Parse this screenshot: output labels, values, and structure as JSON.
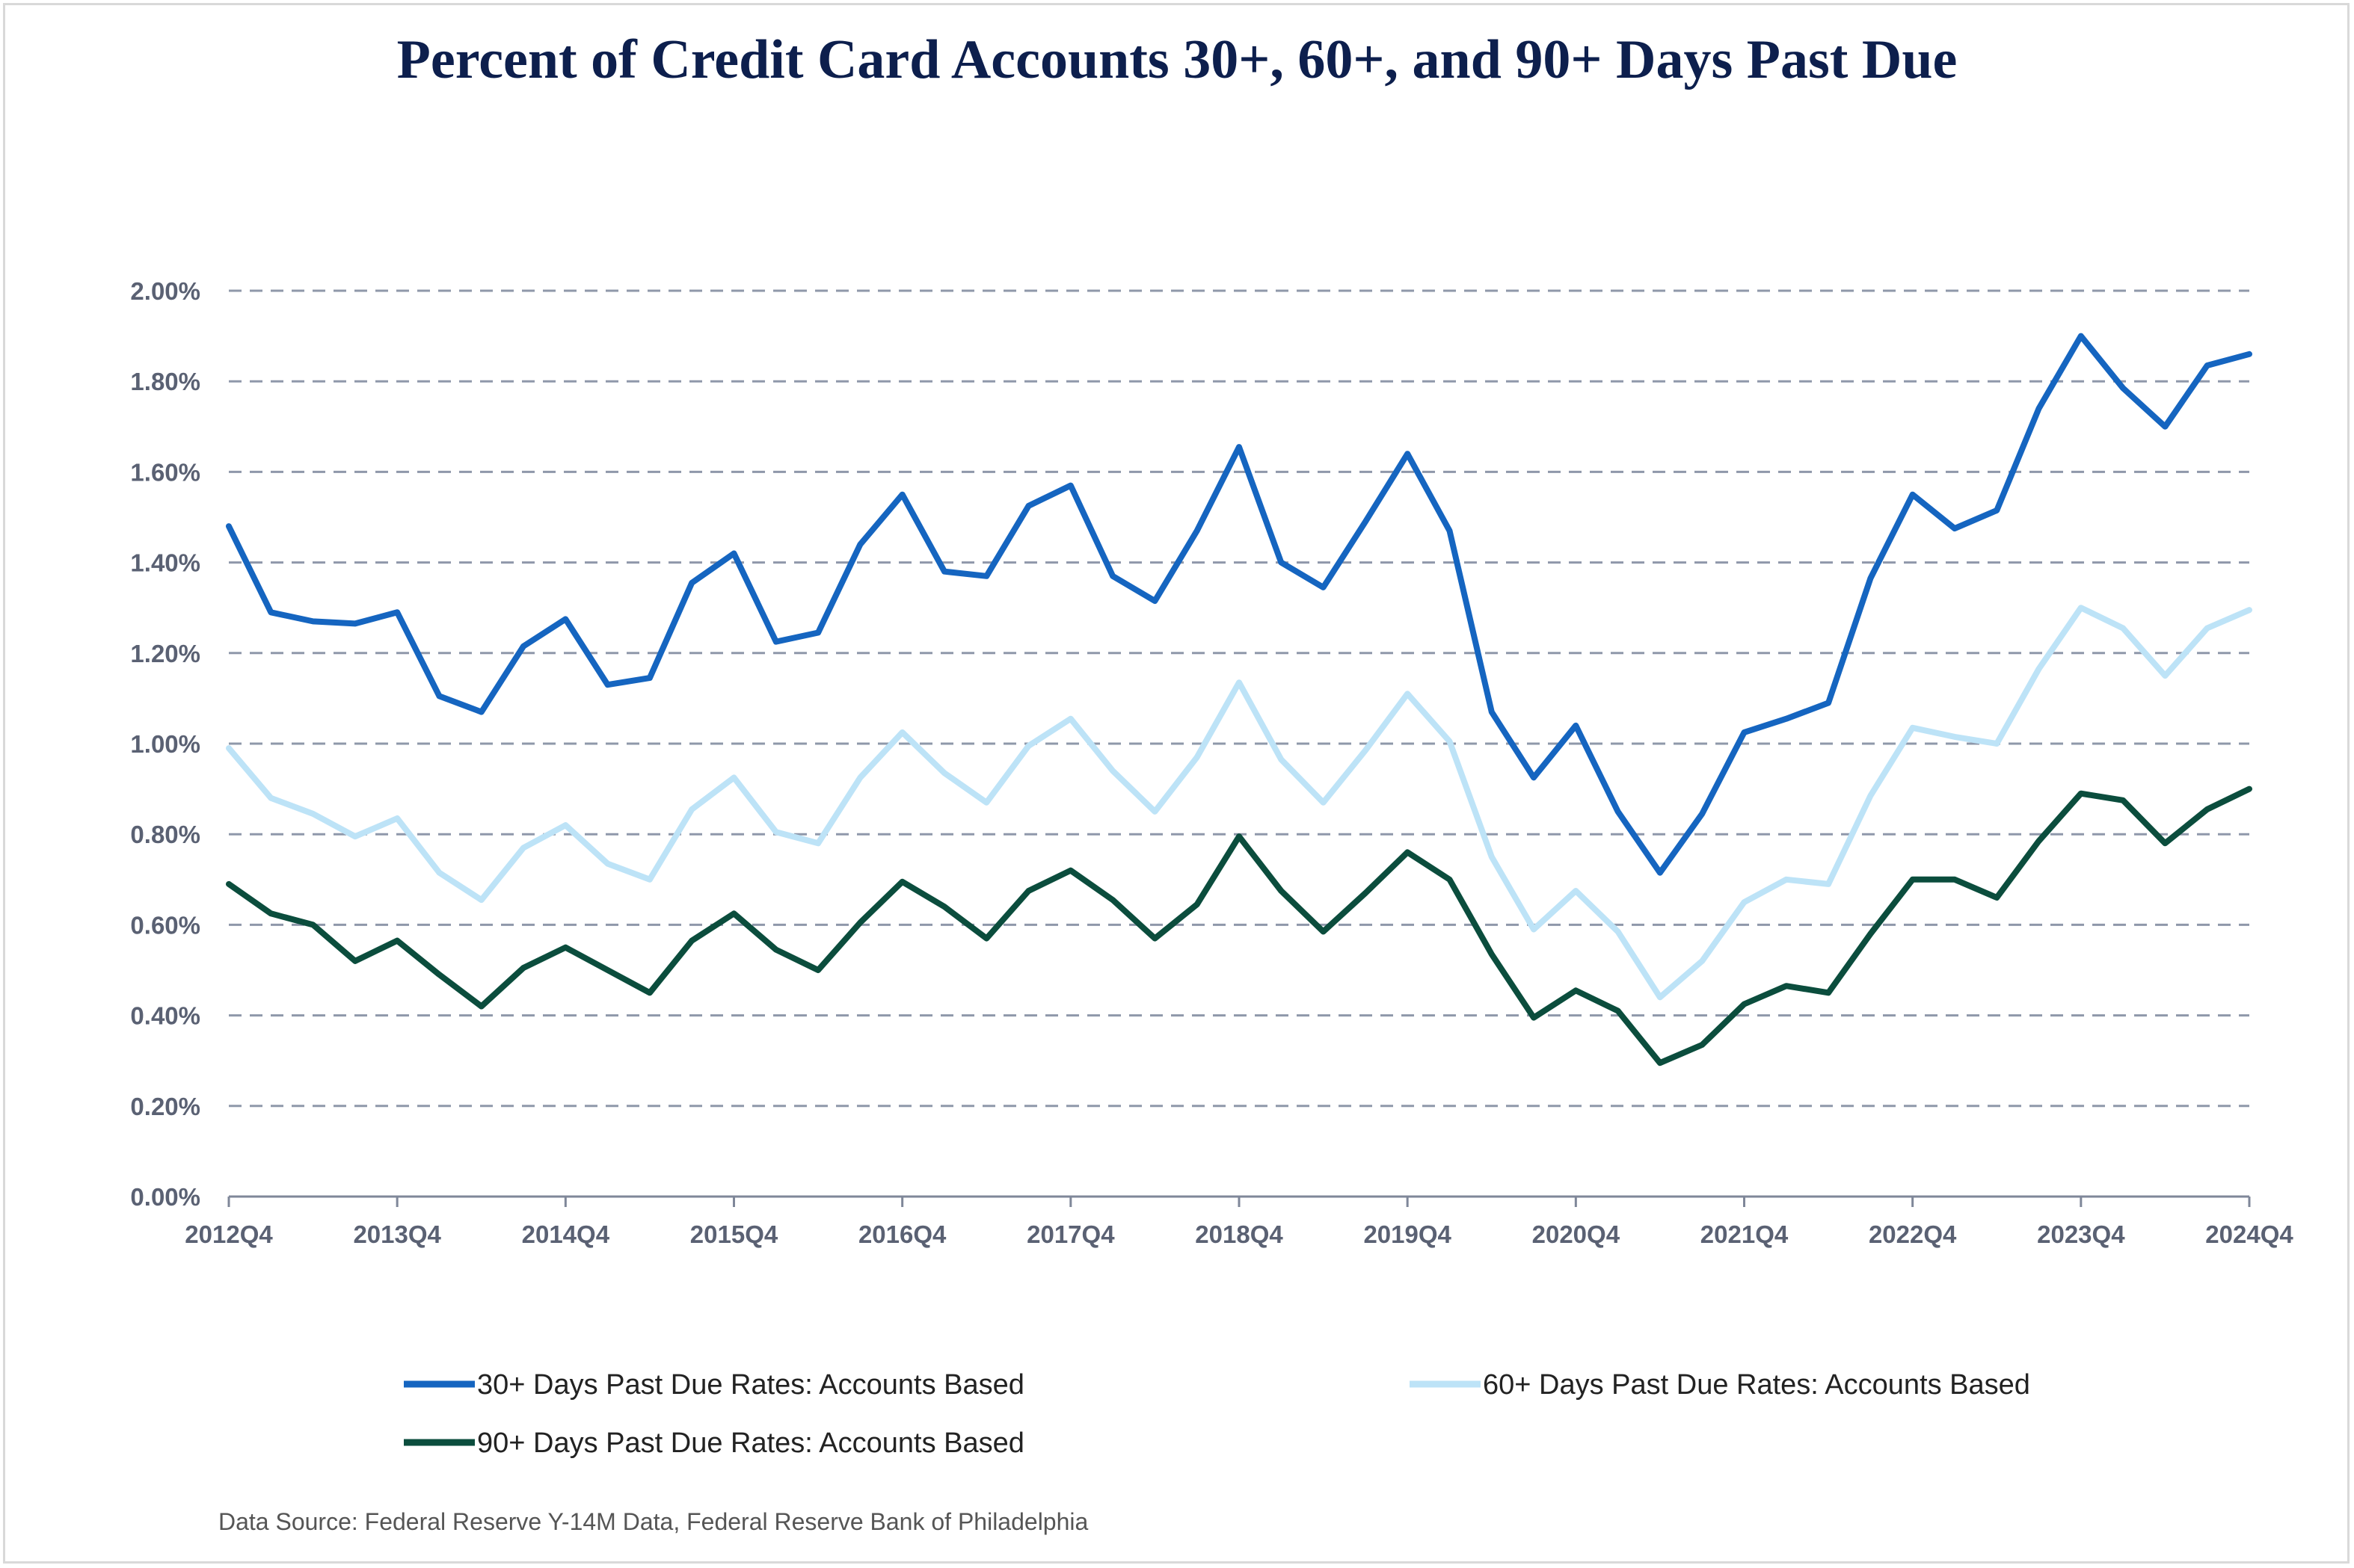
{
  "chart_data": {
    "type": "line",
    "title": "Percent of Credit Card Accounts 30+, 60+, and 90+ Days Past Due",
    "xlabel": "",
    "ylabel": "",
    "ylim": [
      0,
      2.0
    ],
    "yticks": [
      "0.00%",
      "0.20%",
      "0.40%",
      "0.60%",
      "0.80%",
      "1.00%",
      "1.20%",
      "1.40%",
      "1.60%",
      "1.80%",
      "2.00%"
    ],
    "xtick_labels": [
      "2012Q4",
      "2013Q4",
      "2014Q4",
      "2015Q4",
      "2016Q4",
      "2017Q4",
      "2018Q4",
      "2019Q4",
      "2020Q4",
      "2021Q4",
      "2022Q4",
      "2023Q4",
      "2024Q4"
    ],
    "x": [
      "2012Q4",
      "2013Q1",
      "2013Q2",
      "2013Q3",
      "2013Q4",
      "2014Q1",
      "2014Q2",
      "2014Q3",
      "2014Q4",
      "2015Q1",
      "2015Q2",
      "2015Q3",
      "2015Q4",
      "2016Q1",
      "2016Q2",
      "2016Q3",
      "2016Q4",
      "2017Q1",
      "2017Q2",
      "2017Q3",
      "2017Q4",
      "2018Q1",
      "2018Q2",
      "2018Q3",
      "2018Q4",
      "2019Q1",
      "2019Q2",
      "2019Q3",
      "2019Q4",
      "2020Q1",
      "2020Q2",
      "2020Q3",
      "2020Q4",
      "2021Q1",
      "2021Q2",
      "2021Q3",
      "2021Q4",
      "2022Q1",
      "2022Q2",
      "2022Q3",
      "2022Q4",
      "2023Q1",
      "2023Q2",
      "2023Q3",
      "2023Q4",
      "2024Q1",
      "2024Q2",
      "2024Q3",
      "2024Q4"
    ],
    "grid": "horizontal-dashed",
    "legend_position": "bottom",
    "series": [
      {
        "name": "30+ Days Past Due Rates: Accounts Based",
        "color": "#1565c0",
        "values": [
          1.48,
          1.29,
          1.27,
          1.265,
          1.29,
          1.105,
          1.07,
          1.215,
          1.275,
          1.13,
          1.145,
          1.355,
          1.42,
          1.225,
          1.245,
          1.44,
          1.55,
          1.38,
          1.37,
          1.525,
          1.57,
          1.37,
          1.315,
          1.47,
          1.655,
          1.4,
          1.345,
          1.49,
          1.64,
          1.47,
          1.07,
          0.925,
          1.04,
          0.85,
          0.715,
          0.845,
          1.025,
          1.055,
          1.09,
          1.365,
          1.55,
          1.475,
          1.515,
          1.74,
          1.9,
          1.785,
          1.7,
          1.835,
          1.86
        ]
      },
      {
        "name": "60+ Days Past Due Rates: Accounts Based",
        "color": "#bde3f7",
        "values": [
          0.99,
          0.88,
          0.845,
          0.795,
          0.835,
          0.715,
          0.655,
          0.77,
          0.82,
          0.735,
          0.7,
          0.855,
          0.925,
          0.805,
          0.78,
          0.925,
          1.025,
          0.935,
          0.87,
          0.995,
          1.055,
          0.94,
          0.85,
          0.97,
          1.135,
          0.965,
          0.87,
          0.985,
          1.11,
          1.005,
          0.75,
          0.59,
          0.675,
          0.585,
          0.44,
          0.52,
          0.65,
          0.7,
          0.69,
          0.885,
          1.035,
          1.015,
          1.0,
          1.165,
          1.3,
          1.255,
          1.15,
          1.255,
          1.295
        ]
      },
      {
        "name": "90+ Days Past Due Rates: Accounts Based",
        "color": "#0b4d3d",
        "values": [
          0.69,
          0.625,
          0.6,
          0.52,
          0.565,
          0.49,
          0.42,
          0.505,
          0.55,
          0.5,
          0.45,
          0.565,
          0.625,
          0.545,
          0.5,
          0.605,
          0.695,
          0.64,
          0.57,
          0.675,
          0.72,
          0.655,
          0.57,
          0.645,
          0.795,
          0.675,
          0.585,
          0.67,
          0.76,
          0.7,
          0.535,
          0.395,
          0.455,
          0.41,
          0.295,
          0.335,
          0.425,
          0.465,
          0.45,
          0.58,
          0.7,
          0.7,
          0.66,
          0.785,
          0.89,
          0.875,
          0.78,
          0.855,
          0.9
        ]
      }
    ]
  },
  "source": "Data Source: Federal Reserve Y-14M Data, Federal Reserve Bank of Philadelphia"
}
